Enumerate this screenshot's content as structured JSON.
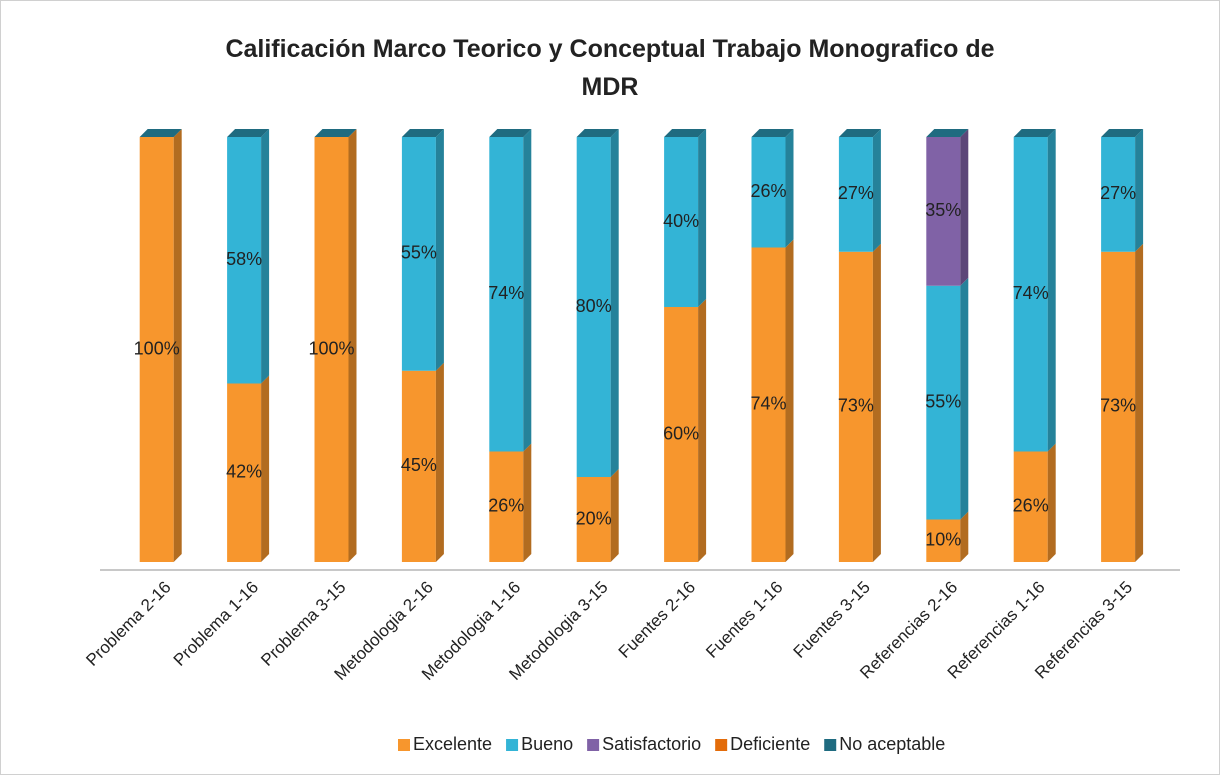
{
  "chart_data": {
    "type": "bar",
    "stacked": true,
    "title": "Calificación Marco Teorico y Conceptual Trabajo Monografico de MDR",
    "categories": [
      "Problema 2-16",
      "Problema 1-16",
      "Problema 3-15",
      "Metodologia 2-16",
      "Metodologia 1-16",
      "Metodologia 3-15",
      "Fuentes 2-16",
      "Fuentes 1-16",
      "Fuentes 3-15",
      "Referencias 2-16",
      "Referencias 1-16",
      "Referencias 3-15"
    ],
    "series": [
      {
        "name": "Excelente",
        "color": "#f7962d",
        "values": [
          100,
          42,
          100,
          45,
          26,
          20,
          60,
          74,
          73,
          10,
          26,
          73
        ],
        "value_labels": [
          "100%",
          "42%",
          "100%",
          "45%",
          "26%",
          "20%",
          "60%",
          "74%",
          "73%",
          "10%",
          "26%",
          "73%"
        ]
      },
      {
        "name": "Bueno",
        "color": "#33b4d6",
        "values": [
          0,
          58,
          0,
          55,
          74,
          80,
          40,
          26,
          27,
          55,
          74,
          27
        ],
        "value_labels": [
          null,
          "58%",
          null,
          "55%",
          "74%",
          "80%",
          "40%",
          "26%",
          "27%",
          "55%",
          "74%",
          "27%"
        ]
      },
      {
        "name": "Satisfactorio",
        "color": "#8062a6",
        "values": [
          0,
          0,
          0,
          0,
          0,
          0,
          0,
          0,
          0,
          35,
          0,
          0
        ],
        "value_labels": [
          null,
          null,
          null,
          null,
          null,
          null,
          null,
          null,
          null,
          "35%",
          null,
          null
        ]
      },
      {
        "name": "Deficiente",
        "color": "#e36c0a",
        "values": [
          0,
          0,
          0,
          0,
          0,
          0,
          0,
          0,
          0,
          0,
          0,
          0
        ]
      },
      {
        "name": "No aceptable",
        "color": "#1f6b80",
        "values": [
          0,
          0,
          0,
          0,
          0,
          0,
          0,
          0,
          0,
          0,
          0,
          0
        ]
      }
    ],
    "ylim": [
      0,
      100
    ],
    "legend": "bottom"
  }
}
